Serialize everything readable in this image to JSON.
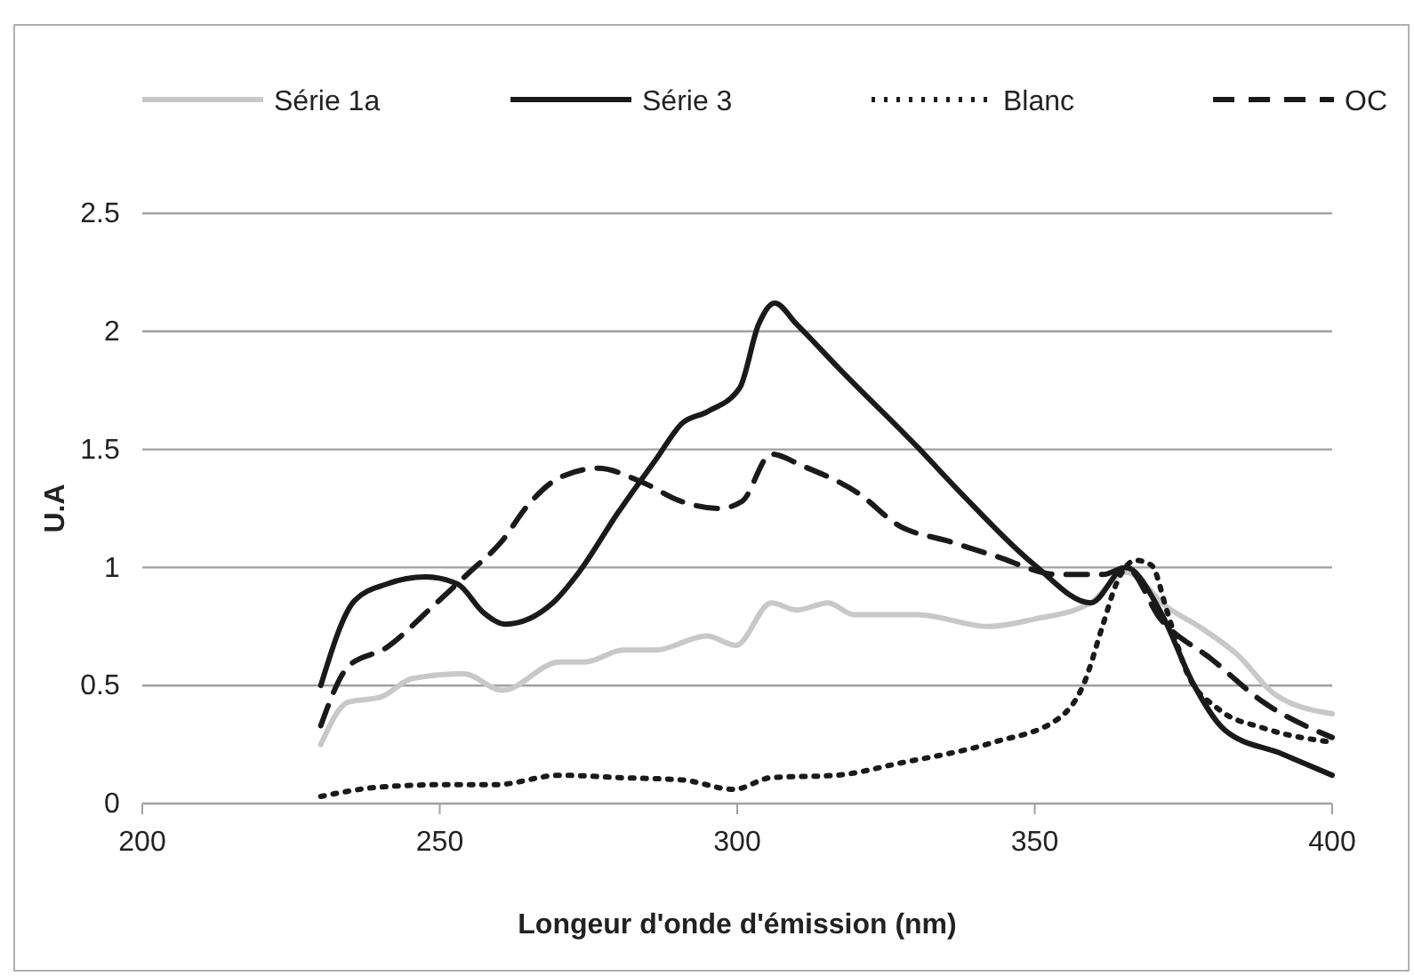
{
  "chart_data": {
    "type": "line",
    "xlabel": "Longeur d'onde d'émission (nm)",
    "ylabel": "U.A",
    "xlim": [
      200,
      400
    ],
    "xticks": [
      200,
      250,
      300,
      350,
      400
    ],
    "ylim": [
      0,
      2.5
    ],
    "yticks": [
      0,
      0.5,
      1,
      1.5,
      2,
      2.5
    ],
    "grid": "y",
    "legend": "top",
    "marker": "none",
    "series": [
      {
        "name": "Série 1a",
        "color": "#c8c8c8",
        "line_style": "solid",
        "x": [
          230,
          234.6,
          240,
          245.4,
          254,
          260.5,
          270.2,
          274.4,
          280.9,
          286.2,
          294.9,
          299.8,
          305.7,
          310,
          315.3,
          319.6,
          330.3,
          342.2,
          349.7,
          359.4,
          365.3,
          372.3,
          377.6,
          384.1,
          390.5,
          400
        ],
        "values": [
          0.25,
          0.43,
          0.45,
          0.53,
          0.55,
          0.48,
          0.6,
          0.6,
          0.65,
          0.65,
          0.71,
          0.67,
          0.85,
          0.82,
          0.85,
          0.8,
          0.8,
          0.75,
          0.78,
          0.85,
          0.98,
          0.83,
          0.75,
          0.63,
          0.46,
          0.38
        ]
      },
      {
        "name": "Série 3",
        "color": "#1a1a1a",
        "line_style": "solid",
        "x": [
          230,
          235.7,
          241.1,
          247.6,
          253,
          257.3,
          261,
          269,
          273.4,
          279.9,
          286.4,
          290.7,
          295,
          300.4,
          303.6,
          306.3,
          310,
          317.6,
          330.3,
          337.8,
          350,
          359.4,
          365.3,
          371.2,
          376.6,
          382,
          391.6,
          400
        ],
        "values": [
          0.5,
          0.86,
          0.93,
          0.96,
          0.93,
          0.81,
          0.76,
          0.85,
          0.98,
          1.23,
          1.46,
          1.61,
          1.66,
          1.76,
          2.03,
          2.12,
          2.03,
          1.83,
          1.51,
          1.31,
          1.01,
          0.85,
          1.0,
          0.81,
          0.51,
          0.31,
          0.21,
          0.12
        ]
      },
      {
        "name": "Blanc",
        "color": "#1a1a1a",
        "line_style": "dotted",
        "x": [
          230,
          240,
          250.8,
          259.4,
          270.2,
          280,
          290.8,
          299.4,
          305.7,
          316.7,
          327.1,
          343.2,
          354,
          358.3,
          361.5,
          363.7,
          367,
          369.6,
          372.3,
          375.5,
          380.9,
          388.4,
          400
        ],
        "values": [
          0.03,
          0.07,
          0.08,
          0.08,
          0.12,
          0.11,
          0.1,
          0.06,
          0.11,
          0.12,
          0.17,
          0.26,
          0.36,
          0.51,
          0.76,
          0.93,
          1.03,
          1.01,
          0.81,
          0.56,
          0.4,
          0.32,
          0.26
        ]
      },
      {
        "name": "OC",
        "color": "#1a1a1a",
        "line_style": "dashed",
        "x": [
          230,
          234.6,
          241,
          248.6,
          255,
          260.4,
          264.7,
          270.1,
          276.6,
          284.1,
          290.6,
          297,
          300.8,
          305.7,
          311,
          320.6,
          327,
          335.7,
          343.2,
          354,
          361.5,
          365.3,
          371.2,
          379.8,
          388.4,
          400
        ],
        "values": [
          0.33,
          0.58,
          0.66,
          0.83,
          0.98,
          1.11,
          1.26,
          1.38,
          1.42,
          1.36,
          1.28,
          1.25,
          1.28,
          1.48,
          1.43,
          1.31,
          1.18,
          1.11,
          1.05,
          0.97,
          0.97,
          1.0,
          0.78,
          0.61,
          0.43,
          0.28
        ]
      }
    ]
  }
}
